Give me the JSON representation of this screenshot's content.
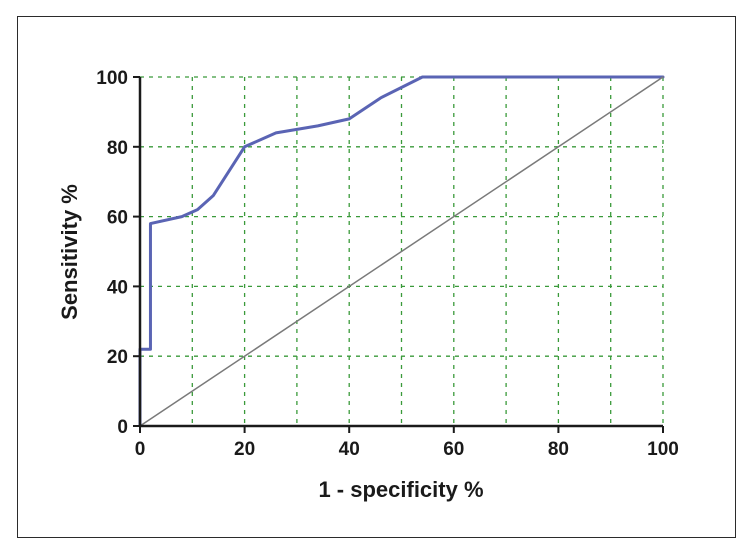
{
  "chart_data": {
    "type": "line",
    "title": "",
    "xlabel": "1 - specificity %",
    "ylabel": "Sensitivity %",
    "xlim": [
      0,
      100
    ],
    "ylim": [
      0,
      100
    ],
    "x_ticks": [
      "0",
      "20",
      "40",
      "60",
      "80",
      "100"
    ],
    "y_ticks": [
      "0",
      "20",
      "40",
      "60",
      "80",
      "100"
    ],
    "grid": true,
    "grid_color": "#3a9a3a",
    "grid_style": "dashed",
    "series": [
      {
        "role": "roc-curve",
        "color": "#5a64b4",
        "x": [
          0,
          0,
          2,
          2,
          8,
          11,
          14,
          20,
          26,
          34,
          40,
          46,
          54,
          70,
          100
        ],
        "y": [
          0,
          22,
          22,
          58,
          60,
          62,
          66,
          80,
          84,
          86,
          88,
          94,
          100,
          100,
          100
        ]
      },
      {
        "role": "reference-diagonal",
        "color": "#7a7a7a",
        "x": [
          0,
          100
        ],
        "y": [
          0,
          100
        ]
      }
    ]
  }
}
